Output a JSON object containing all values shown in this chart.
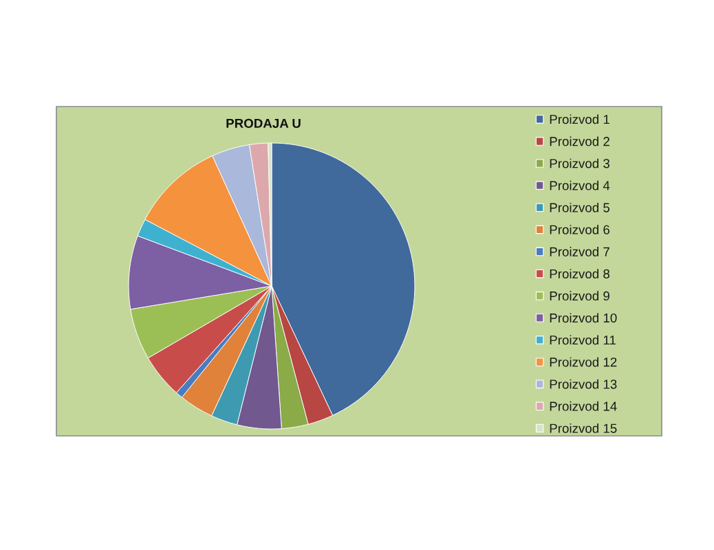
{
  "chart_data": {
    "type": "pie",
    "title": "PRODAJA U",
    "categories": [
      "Proizvod 1",
      "Proizvod 2",
      "Proizvod 3",
      "Proizvod 4",
      "Proizvod 5",
      "Proizvod 6",
      "Proizvod 7",
      "Proizvod 8",
      "Proizvod 9",
      "Proizvod 10",
      "Proizvod 11",
      "Proizvod 12",
      "Proizvod 13",
      "Proizvod 14",
      "Proizvod 15"
    ],
    "values": [
      43.0,
      2.9,
      3.0,
      5.0,
      3.0,
      3.9,
      0.8,
      5.0,
      5.8,
      8.3,
      2.0,
      10.5,
      4.3,
      2.1,
      0.4
    ],
    "colors": [
      "#40699c",
      "#b84643",
      "#8aab48",
      "#71588f",
      "#3e9ab0",
      "#e0823a",
      "#4a7cc0",
      "#c84d4a",
      "#9bbf55",
      "#7d5fa3",
      "#3fb1d0",
      "#f5923d",
      "#a9b8db",
      "#dca8ac",
      "#d8e4c8"
    ],
    "legend": "right"
  }
}
